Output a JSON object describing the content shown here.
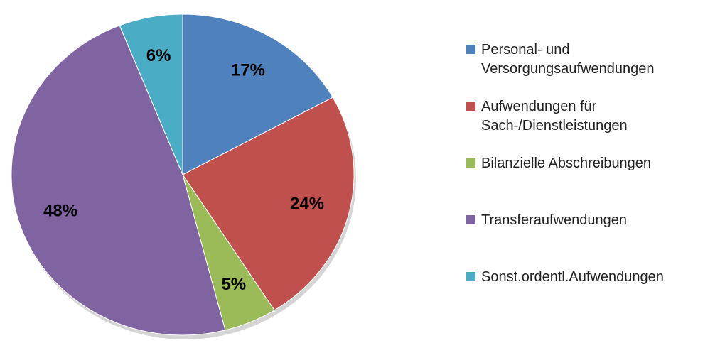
{
  "chart_data": {
    "type": "pie",
    "categories": [
      "Personal- und Versorgungsaufwendungen",
      "Aufwendungen für Sach-/Dienstleistungen",
      "Bilanzielle Abschreibungen",
      "Transferaufwendungen",
      "Sonst.ordentl.Aufwendungen"
    ],
    "values": [
      17,
      24,
      5,
      48,
      6
    ],
    "value_labels": [
      "17%",
      "24%",
      "5%",
      "48%",
      "6%"
    ],
    "colors": [
      "#4f81bd",
      "#c0504d",
      "#9bbb59",
      "#8064a2",
      "#4bacc6"
    ],
    "legend": "right"
  }
}
